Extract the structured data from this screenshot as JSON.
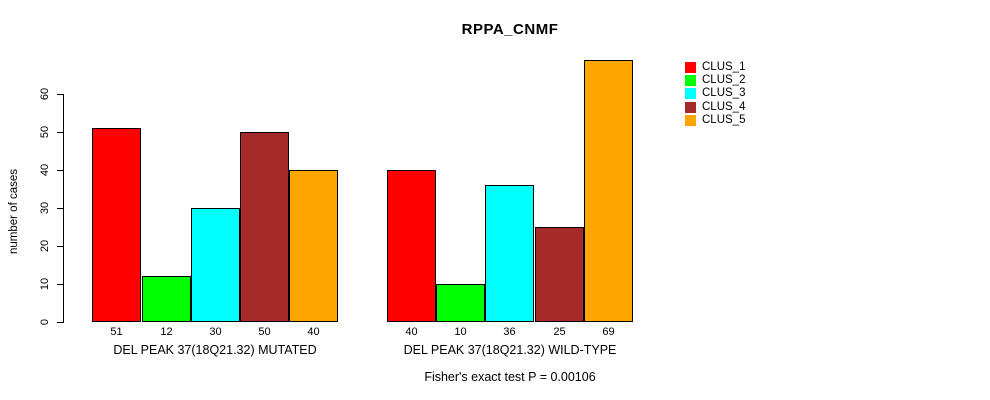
{
  "chart_data": {
    "type": "bar",
    "title": "RPPA_CNMF",
    "xlabel": "",
    "ylabel": "number of cases",
    "ylim": [
      0,
      69
    ],
    "yticks": [
      0,
      10,
      20,
      30,
      40,
      50,
      60
    ],
    "grid": false,
    "legend_position": "right",
    "series_labels": [
      "CLUS_1",
      "CLUS_2",
      "CLUS_3",
      "CLUS_4",
      "CLUS_5"
    ],
    "colors": [
      "#FF0000",
      "#00FF00",
      "#00FFFF",
      "#A52A2A",
      "#FFA500"
    ],
    "groups": [
      {
        "label": "DEL PEAK 37(18Q21.32) MUTATED",
        "values": [
          51,
          12,
          30,
          50,
          40
        ]
      },
      {
        "label": "DEL PEAK 37(18Q21.32) WILD-TYPE",
        "values": [
          40,
          10,
          36,
          25,
          69
        ]
      }
    ],
    "annotation": "Fisher's exact test P = 0.00106"
  }
}
